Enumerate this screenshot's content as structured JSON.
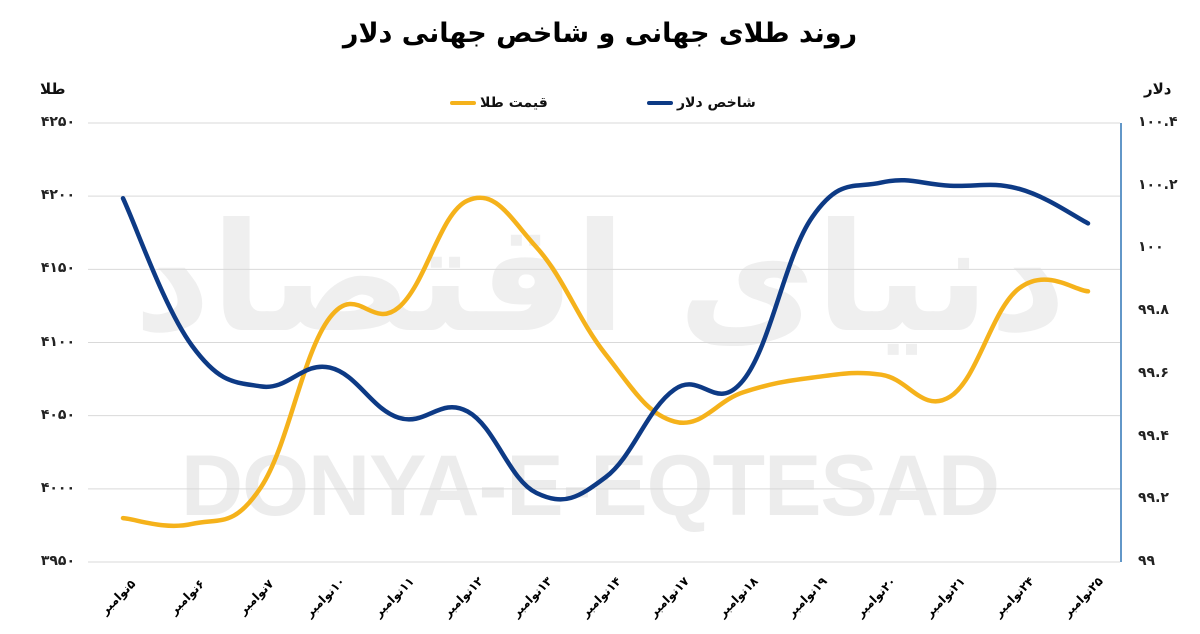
{
  "title": "روند طلای جهانی و شاخص جهانی دلار",
  "axes": {
    "left_title": "طلا",
    "right_title": "دلار",
    "left_ticks": [
      "۴۲۵۰",
      "۴۲۰۰",
      "۴۱۵۰",
      "۴۱۰۰",
      "۴۰۵۰",
      "۴۰۰۰",
      "۳۹۵۰"
    ],
    "right_ticks": [
      "۱۰۰.۴",
      "۱۰۰.۲",
      "۱۰۰",
      "۹۹.۸",
      "۹۹.۶",
      "۹۹.۴",
      "۹۹.۲",
      "۹۹"
    ]
  },
  "legend": {
    "gold_label": "قیمت طلا",
    "dollar_label": "شاخص دلار"
  },
  "colors": {
    "gold": "#F5B21B",
    "dollar": "#0D3A85",
    "grid": "#d9d9d9",
    "right_axis": "#2E75B6"
  },
  "watermark": {
    "latin": "DONYA-E-EQTESAD",
    "persian": "دنیای اقتصاد"
  },
  "chart_data": {
    "type": "line",
    "title": "روند طلای جهانی و شاخص جهانی دلار",
    "xlabel": "",
    "categories": [
      "۵نوامبر",
      "۶نوامبر",
      "۷نوامبر",
      "۱۰نوامبر",
      "۱۱نوامبر",
      "۱۲نوامبر",
      "۱۳نوامبر",
      "۱۴نوامبر",
      "۱۷نوامبر",
      "۱۸نوامبر",
      "۱۹نوامبر",
      "۲۰نوامبر",
      "۲۱نوامبر",
      "۲۴نوامبر",
      "۲۵نوامبر"
    ],
    "series": [
      {
        "name": "قیمت طلا",
        "axis": "left",
        "values": [
          3980,
          3976,
          4001,
          4117,
          4124,
          4197,
          4165,
          4092,
          4046,
          4066,
          4076,
          4078,
          4063,
          4137,
          4135
        ]
      },
      {
        "name": "شاخص دلار",
        "axis": "right",
        "values": [
          100.16,
          99.69,
          99.56,
          99.62,
          99.46,
          99.48,
          99.22,
          99.27,
          99.55,
          99.58,
          100.1,
          100.21,
          100.2,
          100.19,
          100.08
        ]
      }
    ],
    "ylabel_left": "طلا",
    "ylim_left": [
      3950,
      4250
    ],
    "ylabel_right": "دلار",
    "ylim_right": [
      99,
      100.4
    ],
    "grid": true,
    "legend_position": "top"
  }
}
